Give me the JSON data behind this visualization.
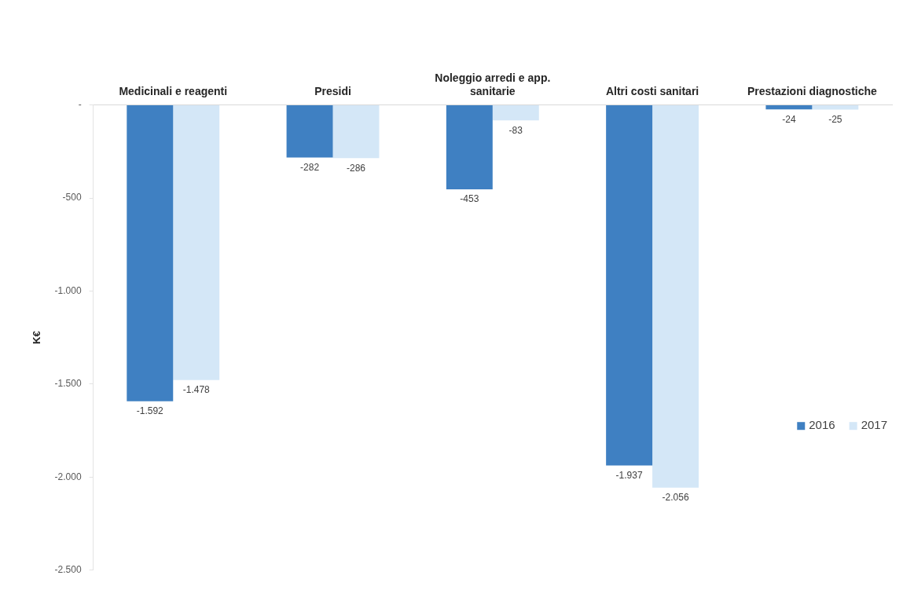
{
  "chart_data": {
    "type": "bar",
    "categories": [
      "Medicinali e reagenti",
      "Presidi",
      "Noleggio arredi e app. sanitarie",
      "Altri costi sanitari",
      "Prestazioni diagnostiche"
    ],
    "series": [
      {
        "name": "2016",
        "color": "#3f80c2",
        "values": [
          -1592,
          -282,
          -453,
          -1937,
          -24
        ],
        "value_labels": [
          "-1.592",
          "-282",
          "-453",
          "-1.937",
          "-24"
        ]
      },
      {
        "name": "2017",
        "color": "#d4e7f7",
        "values": [
          -1478,
          -286,
          -83,
          -2056,
          -25
        ],
        "value_labels": [
          "-1.478",
          "-286",
          "-83",
          "-2.056",
          "-25"
        ]
      }
    ],
    "ylabel": "K€",
    "ylim": [
      -2500,
      0
    ],
    "yticks": [
      {
        "value": 0,
        "label": "-"
      },
      -500,
      {
        "value": -1000,
        "label": "-1.000"
      },
      {
        "value": -1500,
        "label": "-1.500"
      },
      {
        "value": -2000,
        "label": "-2.000"
      },
      {
        "value": -2500,
        "label": "-2.500"
      }
    ],
    "legend": "right"
  }
}
